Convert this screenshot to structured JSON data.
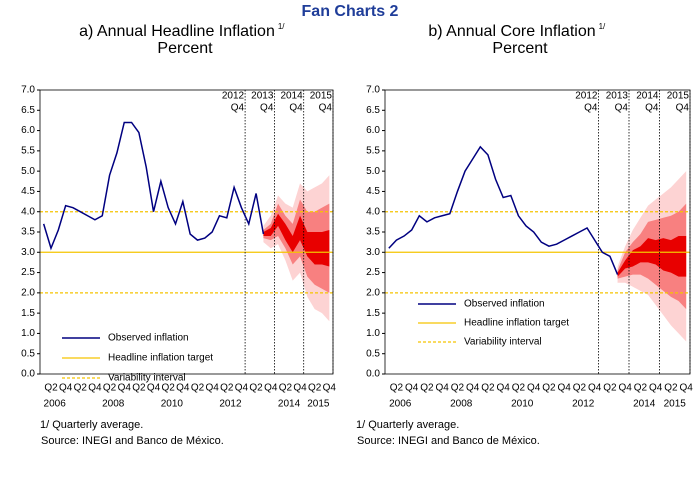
{
  "page_title": "Fan Charts 2",
  "chart_data": [
    {
      "type": "fan",
      "title": "a) Annual Headline Inflation",
      "title_note": "1/",
      "unit": "Percent",
      "categories": [
        null,
        "Q2",
        null,
        "Q4",
        null,
        "Q2",
        null,
        "Q4",
        null,
        "Q2",
        null,
        "Q4",
        null,
        "Q2",
        null,
        "Q4",
        null,
        "Q2",
        null,
        "Q4",
        null,
        "Q2",
        null,
        "Q4",
        null,
        "Q2",
        null,
        "Q4",
        null,
        "Q2",
        null,
        "Q4",
        null,
        "Q2",
        null,
        "Q4",
        null,
        "Q2",
        null,
        "Q4"
      ],
      "years": [
        "2006",
        "2008",
        "2010",
        "2012",
        "2014",
        "2015"
      ],
      "series": [
        {
          "name": "Observed inflation",
          "color": "#000080",
          "values": [
            3.7,
            3.1,
            3.55,
            4.15,
            4.1,
            4.0,
            3.9,
            3.8,
            3.9,
            4.9,
            5.45,
            6.2,
            6.2,
            5.95,
            5.1,
            4.0,
            4.75,
            4.1,
            3.7,
            4.25,
            3.45,
            3.3,
            3.35,
            3.5,
            3.9,
            3.85,
            4.6,
            4.1,
            3.7,
            4.45,
            3.45,
            null,
            null,
            null,
            null,
            null,
            null,
            null,
            null,
            null
          ]
        }
      ],
      "fan_bands": [
        {
          "color": "#fdd3d3",
          "lower": [
            null,
            null,
            null,
            null,
            null,
            null,
            null,
            null,
            null,
            null,
            null,
            null,
            null,
            null,
            null,
            null,
            null,
            null,
            null,
            null,
            null,
            null,
            null,
            null,
            null,
            null,
            null,
            null,
            null,
            null,
            3.25,
            3.1,
            3.2,
            2.8,
            2.3,
            2.5,
            1.9,
            1.6,
            1.5,
            1.3
          ],
          "upper": [
            null,
            null,
            null,
            null,
            null,
            null,
            null,
            null,
            null,
            null,
            null,
            null,
            null,
            null,
            null,
            null,
            null,
            null,
            null,
            null,
            null,
            null,
            null,
            null,
            null,
            null,
            null,
            null,
            null,
            null,
            3.65,
            3.9,
            4.4,
            4.2,
            4.1,
            4.7,
            4.5,
            4.6,
            4.7,
            4.9
          ]
        },
        {
          "color": "#f88080",
          "lower": [
            null,
            null,
            null,
            null,
            null,
            null,
            null,
            null,
            null,
            null,
            null,
            null,
            null,
            null,
            null,
            null,
            null,
            null,
            null,
            null,
            null,
            null,
            null,
            null,
            null,
            null,
            null,
            null,
            null,
            null,
            3.35,
            3.3,
            3.4,
            3.1,
            2.7,
            2.9,
            2.4,
            2.2,
            2.1,
            2.0
          ],
          "upper": [
            null,
            null,
            null,
            null,
            null,
            null,
            null,
            null,
            null,
            null,
            null,
            null,
            null,
            null,
            null,
            null,
            null,
            null,
            null,
            null,
            null,
            null,
            null,
            null,
            null,
            null,
            null,
            null,
            null,
            null,
            3.55,
            3.7,
            4.2,
            3.9,
            3.7,
            4.3,
            4.0,
            4.0,
            4.1,
            4.2
          ]
        },
        {
          "color": "#e80000",
          "lower": [
            null,
            null,
            null,
            null,
            null,
            null,
            null,
            null,
            null,
            null,
            null,
            null,
            null,
            null,
            null,
            null,
            null,
            null,
            null,
            null,
            null,
            null,
            null,
            null,
            null,
            null,
            null,
            null,
            null,
            null,
            3.4,
            3.4,
            3.65,
            3.3,
            3.0,
            3.3,
            2.9,
            2.7,
            2.7,
            2.65
          ],
          "upper": [
            null,
            null,
            null,
            null,
            null,
            null,
            null,
            null,
            null,
            null,
            null,
            null,
            null,
            null,
            null,
            null,
            null,
            null,
            null,
            null,
            null,
            null,
            null,
            null,
            null,
            null,
            null,
            null,
            null,
            null,
            3.5,
            3.6,
            3.95,
            3.7,
            3.4,
            3.9,
            3.5,
            3.5,
            3.5,
            3.55
          ]
        }
      ],
      "reference_lines": [
        {
          "name": "Headline inflation target",
          "values": [
            3
          ],
          "color": "#f5c400",
          "dashed": false
        },
        {
          "name": "Variability interval",
          "values": [
            2,
            4
          ],
          "color": "#f5c400",
          "dashed": true
        }
      ],
      "vertical_lines": [
        {
          "year": "2012",
          "quarter": "Q4"
        },
        {
          "year": "2013",
          "quarter": "Q4"
        },
        {
          "year": "2014",
          "quarter": "Q4"
        },
        {
          "year": "2015",
          "quarter": "Q4"
        }
      ],
      "ylim": [
        0,
        7
      ],
      "yticks": [
        {
          "value": 0,
          "label": "0.0"
        },
        {
          "value": 0.5,
          "label": "0.5"
        },
        {
          "value": 1,
          "label": "1.0"
        },
        {
          "value": 1.5,
          "label": "1.5"
        },
        {
          "value": 2,
          "label": "2.0"
        },
        {
          "value": 2.5,
          "label": "2.5"
        },
        {
          "value": 3,
          "label": "3.0"
        },
        {
          "value": 3.5,
          "label": "3.5"
        },
        {
          "value": 4,
          "label": "4.0"
        },
        {
          "value": 4.5,
          "label": "4.5"
        },
        {
          "value": 5,
          "label": "5.0"
        },
        {
          "value": 5.5,
          "label": "5.5"
        },
        {
          "value": 6,
          "label": "6.0"
        },
        {
          "value": 6.5,
          "label": "6.5"
        },
        {
          "value": 7,
          "label": "7.0"
        }
      ],
      "footnotes": [
        "1/ Quarterly average.",
        "Source: INEGI and Banco de México."
      ]
    },
    {
      "type": "fan",
      "title": "b) Annual Core Inflation",
      "title_note": "1/",
      "unit": "Percent",
      "categories": [
        null,
        "Q2",
        null,
        "Q4",
        null,
        "Q2",
        null,
        "Q4",
        null,
        "Q2",
        null,
        "Q4",
        null,
        "Q2",
        null,
        "Q4",
        null,
        "Q2",
        null,
        "Q4",
        null,
        "Q2",
        null,
        "Q4",
        null,
        "Q2",
        null,
        "Q4",
        null,
        "Q2",
        null,
        "Q4",
        null,
        "Q2",
        null,
        "Q4",
        null,
        "Q2",
        null,
        "Q4"
      ],
      "years": [
        "2006",
        "2008",
        "2010",
        "2012",
        "2014",
        "2015"
      ],
      "series": [
        {
          "name": "Observed inflation",
          "color": "#000080",
          "values": [
            3.1,
            3.3,
            3.4,
            3.55,
            3.9,
            3.75,
            3.85,
            3.9,
            3.95,
            4.5,
            5.0,
            5.3,
            5.6,
            5.4,
            4.8,
            4.35,
            4.4,
            3.9,
            3.65,
            3.5,
            3.25,
            3.15,
            3.2,
            3.3,
            3.4,
            3.5,
            3.6,
            3.3,
            3.0,
            2.9,
            2.45,
            null,
            null,
            null,
            null,
            null,
            null,
            null,
            null,
            null
          ]
        }
      ],
      "fan_bands": [
        {
          "color": "#fdd3d3",
          "lower": [
            null,
            null,
            null,
            null,
            null,
            null,
            null,
            null,
            null,
            null,
            null,
            null,
            null,
            null,
            null,
            null,
            null,
            null,
            null,
            null,
            null,
            null,
            null,
            null,
            null,
            null,
            null,
            null,
            null,
            null,
            2.25,
            2.25,
            2.15,
            2.05,
            1.95,
            1.7,
            1.45,
            1.2,
            1.0,
            0.8
          ],
          "upper": [
            null,
            null,
            null,
            null,
            null,
            null,
            null,
            null,
            null,
            null,
            null,
            null,
            null,
            null,
            null,
            null,
            null,
            null,
            null,
            null,
            null,
            null,
            null,
            null,
            null,
            null,
            null,
            null,
            null,
            null,
            2.65,
            3.15,
            3.55,
            3.85,
            4.15,
            4.3,
            4.45,
            4.6,
            4.8,
            5.0
          ]
        },
        {
          "color": "#f88080",
          "lower": [
            null,
            null,
            null,
            null,
            null,
            null,
            null,
            null,
            null,
            null,
            null,
            null,
            null,
            null,
            null,
            null,
            null,
            null,
            null,
            null,
            null,
            null,
            null,
            null,
            null,
            null,
            null,
            null,
            null,
            null,
            2.35,
            2.4,
            2.45,
            2.45,
            2.35,
            2.2,
            2.05,
            1.9,
            1.8,
            1.6
          ],
          "upper": [
            null,
            null,
            null,
            null,
            null,
            null,
            null,
            null,
            null,
            null,
            null,
            null,
            null,
            null,
            null,
            null,
            null,
            null,
            null,
            null,
            null,
            null,
            null,
            null,
            null,
            null,
            null,
            null,
            null,
            null,
            2.55,
            3.0,
            3.25,
            3.45,
            3.75,
            3.8,
            3.85,
            3.9,
            4.0,
            4.2
          ]
        },
        {
          "color": "#e80000",
          "lower": [
            null,
            null,
            null,
            null,
            null,
            null,
            null,
            null,
            null,
            null,
            null,
            null,
            null,
            null,
            null,
            null,
            null,
            null,
            null,
            null,
            null,
            null,
            null,
            null,
            null,
            null,
            null,
            null,
            null,
            null,
            2.4,
            2.6,
            2.65,
            2.75,
            2.75,
            2.7,
            2.55,
            2.5,
            2.4,
            2.4
          ],
          "upper": [
            null,
            null,
            null,
            null,
            null,
            null,
            null,
            null,
            null,
            null,
            null,
            null,
            null,
            null,
            null,
            null,
            null,
            null,
            null,
            null,
            null,
            null,
            null,
            null,
            null,
            null,
            null,
            null,
            null,
            null,
            2.5,
            2.8,
            3.05,
            3.15,
            3.35,
            3.3,
            3.35,
            3.3,
            3.4,
            3.4
          ]
        }
      ],
      "reference_lines": [
        {
          "name": "Headline inflation target",
          "values": [
            3
          ],
          "color": "#f5c400",
          "dashed": false
        },
        {
          "name": "Variability interval",
          "values": [
            2,
            4
          ],
          "color": "#f5c400",
          "dashed": true
        }
      ],
      "vertical_lines": [
        {
          "year": "2012",
          "quarter": "Q4"
        },
        {
          "year": "2013",
          "quarter": "Q4"
        },
        {
          "year": "2014",
          "quarter": "Q4"
        },
        {
          "year": "2015",
          "quarter": "Q4"
        }
      ],
      "ylim": [
        0,
        7
      ],
      "yticks": [
        {
          "value": 0,
          "label": "0.0"
        },
        {
          "value": 0.5,
          "label": "0.5"
        },
        {
          "value": 1,
          "label": "1.0"
        },
        {
          "value": 1.5,
          "label": "1.5"
        },
        {
          "value": 2,
          "label": "2.0"
        },
        {
          "value": 2.5,
          "label": "2.5"
        },
        {
          "value": 3,
          "label": "3.0"
        },
        {
          "value": 3.5,
          "label": "3.5"
        },
        {
          "value": 4,
          "label": "4.0"
        },
        {
          "value": 4.5,
          "label": "4.5"
        },
        {
          "value": 5,
          "label": "5.0"
        },
        {
          "value": 5.5,
          "label": "5.5"
        },
        {
          "value": 6,
          "label": "6.0"
        },
        {
          "value": 6.5,
          "label": "6.5"
        },
        {
          "value": 7,
          "label": "7.0"
        }
      ],
      "footnotes": [
        "1/ Quarterly average.",
        "Source: INEGI and Banco de México."
      ]
    }
  ]
}
